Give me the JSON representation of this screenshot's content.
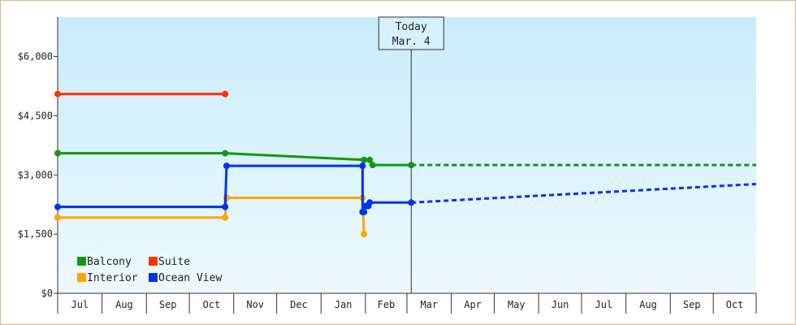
{
  "chart_data": {
    "type": "line",
    "title": "",
    "xlabel": "",
    "ylabel": "",
    "ylim": [
      0,
      7000
    ],
    "yticks": [
      {
        "value": 0,
        "label": "$0"
      },
      {
        "value": 1500,
        "label": "$1,500"
      },
      {
        "value": 3000,
        "label": "$3,000"
      },
      {
        "value": 4500,
        "label": "$4,500"
      },
      {
        "value": 6000,
        "label": "$6,000"
      }
    ],
    "months": [
      "Jul",
      "Aug",
      "Sep",
      "Oct",
      "Nov",
      "Dec",
      "Jan",
      "Feb",
      "Mar",
      "Apr",
      "May",
      "Jun",
      "Jul",
      "Aug",
      "Sep",
      "Oct"
    ],
    "x_domain": [
      "2023-07-01",
      "2024-10-31"
    ],
    "today": {
      "date": "2024-03-04",
      "title": "Today",
      "label": "Mar. 4"
    },
    "legend": [
      {
        "name": "Balcony",
        "color": "#119911"
      },
      {
        "name": "Suite",
        "color": "#ff3300"
      },
      {
        "name": "Interior",
        "color": "#ffa500"
      },
      {
        "name": "Ocean View",
        "color": "#0033ee"
      }
    ],
    "series": [
      {
        "name": "Balcony",
        "color": "#119911",
        "points": [
          {
            "date": "2023-07-01",
            "price": 3550
          },
          {
            "date": "2023-10-26",
            "price": 3550
          },
          {
            "date": "2024-01-31",
            "price": 3380
          },
          {
            "date": "2024-02-04",
            "price": 3380
          },
          {
            "date": "2024-02-06",
            "price": 3250
          },
          {
            "date": "2024-03-04",
            "price": 3250
          }
        ],
        "forecast": [
          {
            "date": "2024-03-04",
            "price": 3250
          },
          {
            "date": "2024-10-31",
            "price": 3250
          }
        ]
      },
      {
        "name": "Suite",
        "color": "#ff3300",
        "points": [
          {
            "date": "2023-07-01",
            "price": 5050
          },
          {
            "date": "2023-10-26",
            "price": 5050
          }
        ]
      },
      {
        "name": "Interior",
        "color": "#ffa500",
        "points": [
          {
            "date": "2023-07-01",
            "price": 1920
          },
          {
            "date": "2023-10-26",
            "price": 1920
          },
          {
            "date": "2023-10-27",
            "price": 2420
          },
          {
            "date": "2024-01-30",
            "price": 2420
          },
          {
            "date": "2024-01-31",
            "price": 1500
          }
        ]
      },
      {
        "name": "Ocean View",
        "color": "#0033ee",
        "points": [
          {
            "date": "2023-07-01",
            "price": 2190
          },
          {
            "date": "2023-10-26",
            "price": 2190
          },
          {
            "date": "2023-10-27",
            "price": 3230
          },
          {
            "date": "2024-01-30",
            "price": 3230
          },
          {
            "date": "2024-01-30",
            "price": 2060
          },
          {
            "date": "2024-01-31",
            "price": 2060
          },
          {
            "date": "2024-02-01",
            "price": 2210
          },
          {
            "date": "2024-02-03",
            "price": 2210
          },
          {
            "date": "2024-02-04",
            "price": 2300
          },
          {
            "date": "2024-03-04",
            "price": 2300
          }
        ],
        "forecast": [
          {
            "date": "2024-03-04",
            "price": 2300
          },
          {
            "date": "2024-10-31",
            "price": 2770
          }
        ]
      }
    ]
  }
}
